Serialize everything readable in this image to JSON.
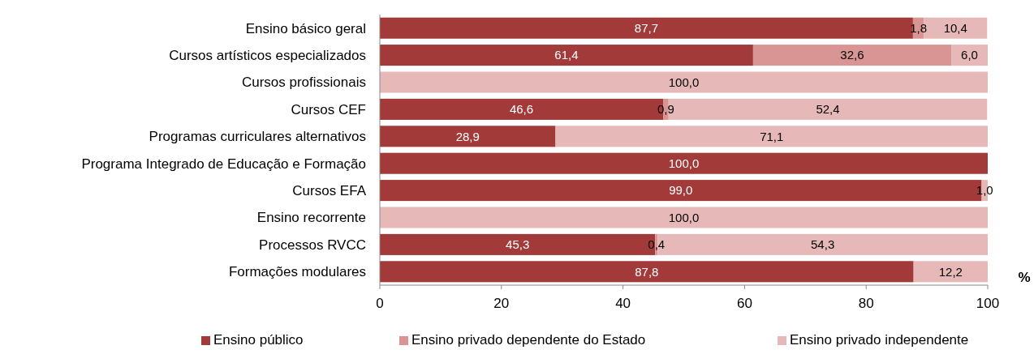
{
  "chart_data": {
    "type": "bar",
    "orientation": "horizontal",
    "stacked": true,
    "xlabel": "%",
    "categories": [
      "Ensino básico geral",
      "Cursos artísticos especializados",
      "Cursos profissionais",
      "Cursos CEF",
      "Programas curriculares alternativos",
      "Programa Integrado de Educação e Formação",
      "Cursos EFA",
      "Ensino recorrente",
      "Processos RVCC",
      "Formações modulares"
    ],
    "series": [
      {
        "name": "Ensino público",
        "color": "#a33a3a",
        "values": [
          87.7,
          61.4,
          0,
          46.6,
          28.9,
          100,
          99.0,
          0,
          45.3,
          87.8
        ],
        "value_labels": [
          "87,7",
          "61,4",
          null,
          "46,6",
          "28,9",
          "100,0",
          "99,0",
          null,
          "45,3",
          "87,8"
        ]
      },
      {
        "name": "Ensino privado dependente do Estado",
        "color": "#d99594",
        "values": [
          1.8,
          32.6,
          0,
          0.9,
          0,
          0,
          0,
          0,
          0.4,
          0
        ],
        "value_labels": [
          "1,8",
          "32,6",
          null,
          "0,9",
          null,
          null,
          null,
          null,
          "0,4",
          null
        ]
      },
      {
        "name": "Ensino privado independente",
        "color": "#e6b9b8",
        "values": [
          10.4,
          6.0,
          100,
          52.4,
          71.1,
          0,
          1.0,
          100,
          54.3,
          12.2
        ],
        "value_labels": [
          "10,4",
          "6,0",
          "100,0",
          "52,4",
          "71,1",
          null,
          "1,0",
          "100,0",
          "54,3",
          "12,2"
        ]
      }
    ],
    "xlim": [
      0,
      100
    ],
    "xticks": [
      0,
      20,
      40,
      60,
      80,
      100
    ],
    "legend": "bottom",
    "grid": false
  }
}
